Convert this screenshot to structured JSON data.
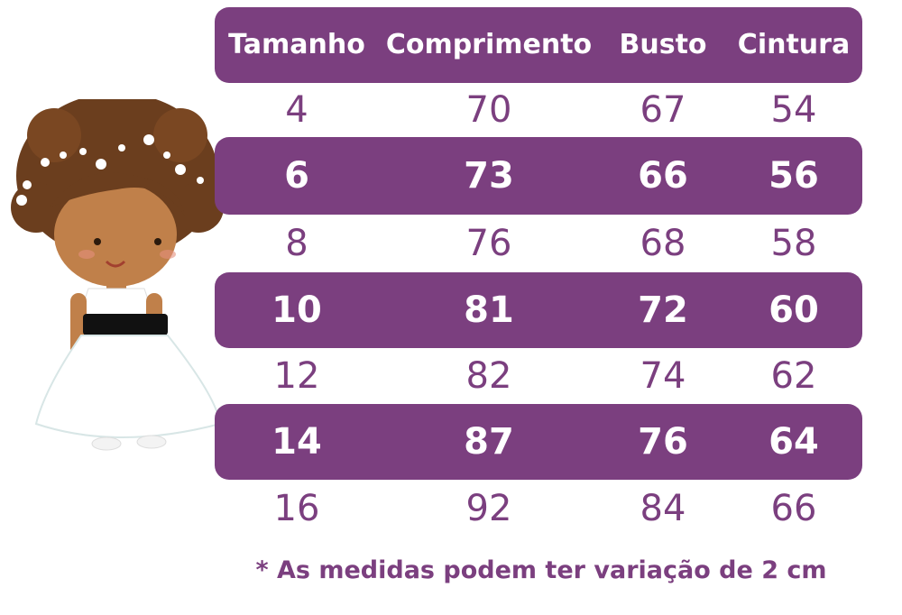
{
  "colors": {
    "accent": "#7b3f7f",
    "band_text": "#ffffff"
  },
  "table": {
    "headers": [
      "Tamanho",
      "Comprimento",
      "Busto",
      "Cintura"
    ],
    "rows": [
      [
        "4",
        "70",
        "67",
        "54"
      ],
      [
        "6",
        "73",
        "66",
        "56"
      ],
      [
        "8",
        "76",
        "68",
        "58"
      ],
      [
        "10",
        "81",
        "72",
        "60"
      ],
      [
        "12",
        "82",
        "74",
        "62"
      ],
      [
        "14",
        "87",
        "76",
        "64"
      ],
      [
        "16",
        "92",
        "84",
        "66"
      ]
    ]
  },
  "footnote": "* As medidas podem ter variação de 2 cm",
  "illustration": {
    "icon": "girl-in-white-dress-icon"
  }
}
